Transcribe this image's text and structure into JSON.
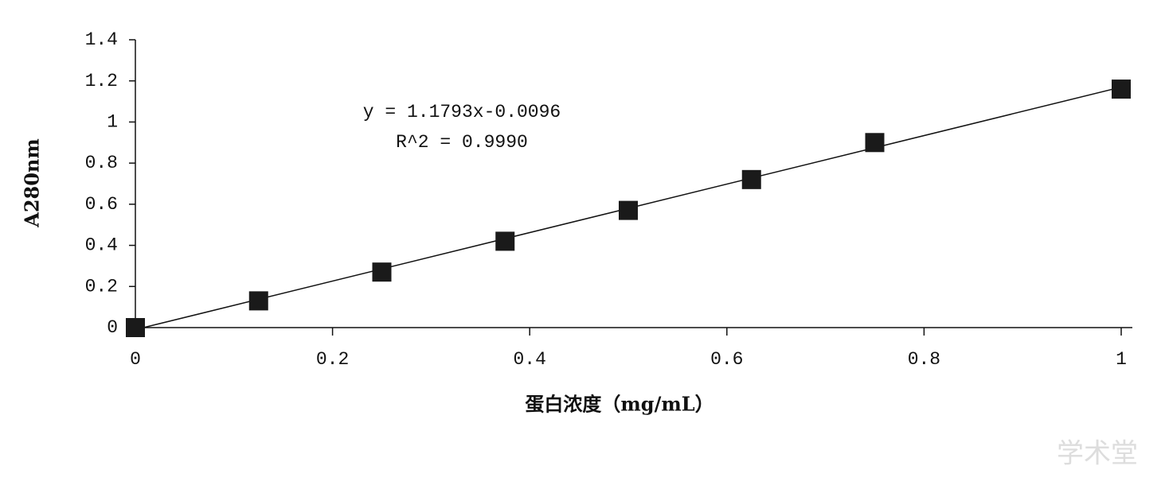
{
  "chart_data": {
    "type": "scatter",
    "x_label": "蛋白浓度（mg/mL）",
    "y_label": "A280nm",
    "annotations": [
      "y = 1.1793x-0.0096",
      "R^2 = 0.9990"
    ],
    "watermark": "学术堂",
    "x": [
      0,
      0.125,
      0.25,
      0.375,
      0.5,
      0.625,
      0.75,
      1
    ],
    "values": [
      0,
      0.13,
      0.27,
      0.42,
      0.57,
      0.72,
      0.9,
      1.16
    ],
    "color": "#1a1a1a",
    "trendline": {
      "slope": 1.1793,
      "intercept": -0.0096
    },
    "xlim": [
      0,
      1
    ],
    "xticks": [
      0,
      0.2,
      0.4,
      0.6,
      0.8,
      1
    ],
    "ylim": [
      0,
      1.4
    ],
    "yticks": [
      0,
      0.2,
      0.4,
      0.6,
      0.8,
      1,
      1.2,
      1.4
    ]
  }
}
